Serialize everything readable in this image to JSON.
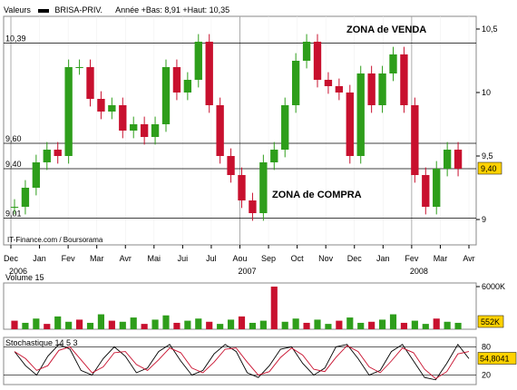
{
  "header": {
    "valeurs_label": "Valeurs",
    "ticker": "BRISA-PRIV.",
    "range_text": "Année +Bas: 8,91 +Haut: 10,35"
  },
  "colors": {
    "up": "#2e9e1b",
    "down": "#c8102e",
    "grid": "#bbbbbb",
    "line": "#000000",
    "badge_bg": "#ffd200"
  },
  "chart_data": [
    {
      "type": "line",
      "name": "price",
      "ylim": [
        8.8,
        10.6
      ],
      "y_ticks": [
        9,
        9.5,
        10,
        10.5
      ],
      "y_tick_labels": [
        "9",
        "9,5",
        "10",
        "10,5"
      ],
      "x_ticks": [
        "Dec",
        "Jan",
        "Fev",
        "Mar",
        "Avr",
        "Mai",
        "Jui",
        "Jul",
        "Aou",
        "Sep",
        "Oct",
        "Nov",
        "Dec",
        "Jan",
        "Fev",
        "Mar",
        "Avr"
      ],
      "year_labels": [
        "2006",
        "2007",
        "2008"
      ],
      "h_lines": [
        {
          "value": 10.39,
          "label": "10,39"
        },
        {
          "value": 9.6,
          "label": "9,60"
        },
        {
          "value": 9.4,
          "label": "9,40"
        },
        {
          "value": 9.01,
          "label": "9,01"
        }
      ],
      "annotations": {
        "sell_zone": "ZONA de VENDA",
        "buy_zone": "ZONA de COMPRA"
      },
      "last_value_badge": "9,40",
      "source": "IT-Finance.com / Boursorama",
      "x": [
        "Dec",
        "Dec",
        "Dec",
        "Jan",
        "Jan",
        "Fev",
        "Fev",
        "Fev",
        "Mar",
        "Mar",
        "Avr",
        "Avr",
        "Mai",
        "Mai",
        "Jui",
        "Jui",
        "Jui",
        "Jul",
        "Jul",
        "Aou",
        "Aou",
        "Sep",
        "Sep",
        "Sep",
        "Oct",
        "Oct",
        "Nov",
        "Nov",
        "Nov",
        "Dec",
        "Dec",
        "Jan",
        "Jan",
        "Fev",
        "Fev",
        "Fev",
        "Mar",
        "Mar",
        "Mar",
        "Avr",
        "Avr",
        "Avr"
      ],
      "values": [
        9.1,
        9.25,
        9.45,
        9.55,
        9.5,
        10.2,
        10.2,
        9.95,
        9.85,
        9.9,
        9.7,
        9.75,
        9.65,
        9.75,
        10.2,
        10.0,
        10.1,
        10.4,
        9.9,
        9.5,
        9.35,
        9.15,
        9.05,
        9.45,
        9.55,
        9.9,
        10.25,
        10.4,
        10.1,
        10.05,
        10.0,
        9.5,
        10.15,
        9.9,
        10.15,
        10.3,
        9.9,
        9.35,
        9.1,
        9.4,
        9.55,
        9.4
      ]
    },
    {
      "type": "bar",
      "name": "Volume 15",
      "title": "Volume 15",
      "y_tick_labels": [
        "6000K"
      ],
      "last_value_badge": "552K",
      "values": [
        8,
        6,
        10,
        5,
        12,
        7,
        9,
        6,
        14,
        8,
        7,
        11,
        5,
        9,
        13,
        6,
        8,
        10,
        7,
        5,
        9,
        12,
        6,
        8,
        40,
        7,
        10,
        6,
        9,
        5,
        8,
        11,
        6,
        7,
        9,
        14,
        6,
        8,
        5,
        10,
        7,
        6
      ]
    },
    {
      "type": "line",
      "name": "Stochastique 14 5 3",
      "title": "Stochastique 14 5 3",
      "ylim": [
        0,
        100
      ],
      "y_ticks": [
        20,
        80
      ],
      "y_tick_labels": [
        "20",
        "80"
      ],
      "last_value_badge": "54,8041",
      "values": [
        70,
        40,
        20,
        60,
        85,
        75,
        30,
        20,
        55,
        80,
        60,
        25,
        35,
        70,
        85,
        50,
        20,
        30,
        65,
        85,
        70,
        25,
        15,
        40,
        75,
        80,
        45,
        20,
        35,
        80,
        85,
        55,
        20,
        30,
        70,
        85,
        50,
        15,
        10,
        45,
        85,
        55
      ]
    }
  ]
}
